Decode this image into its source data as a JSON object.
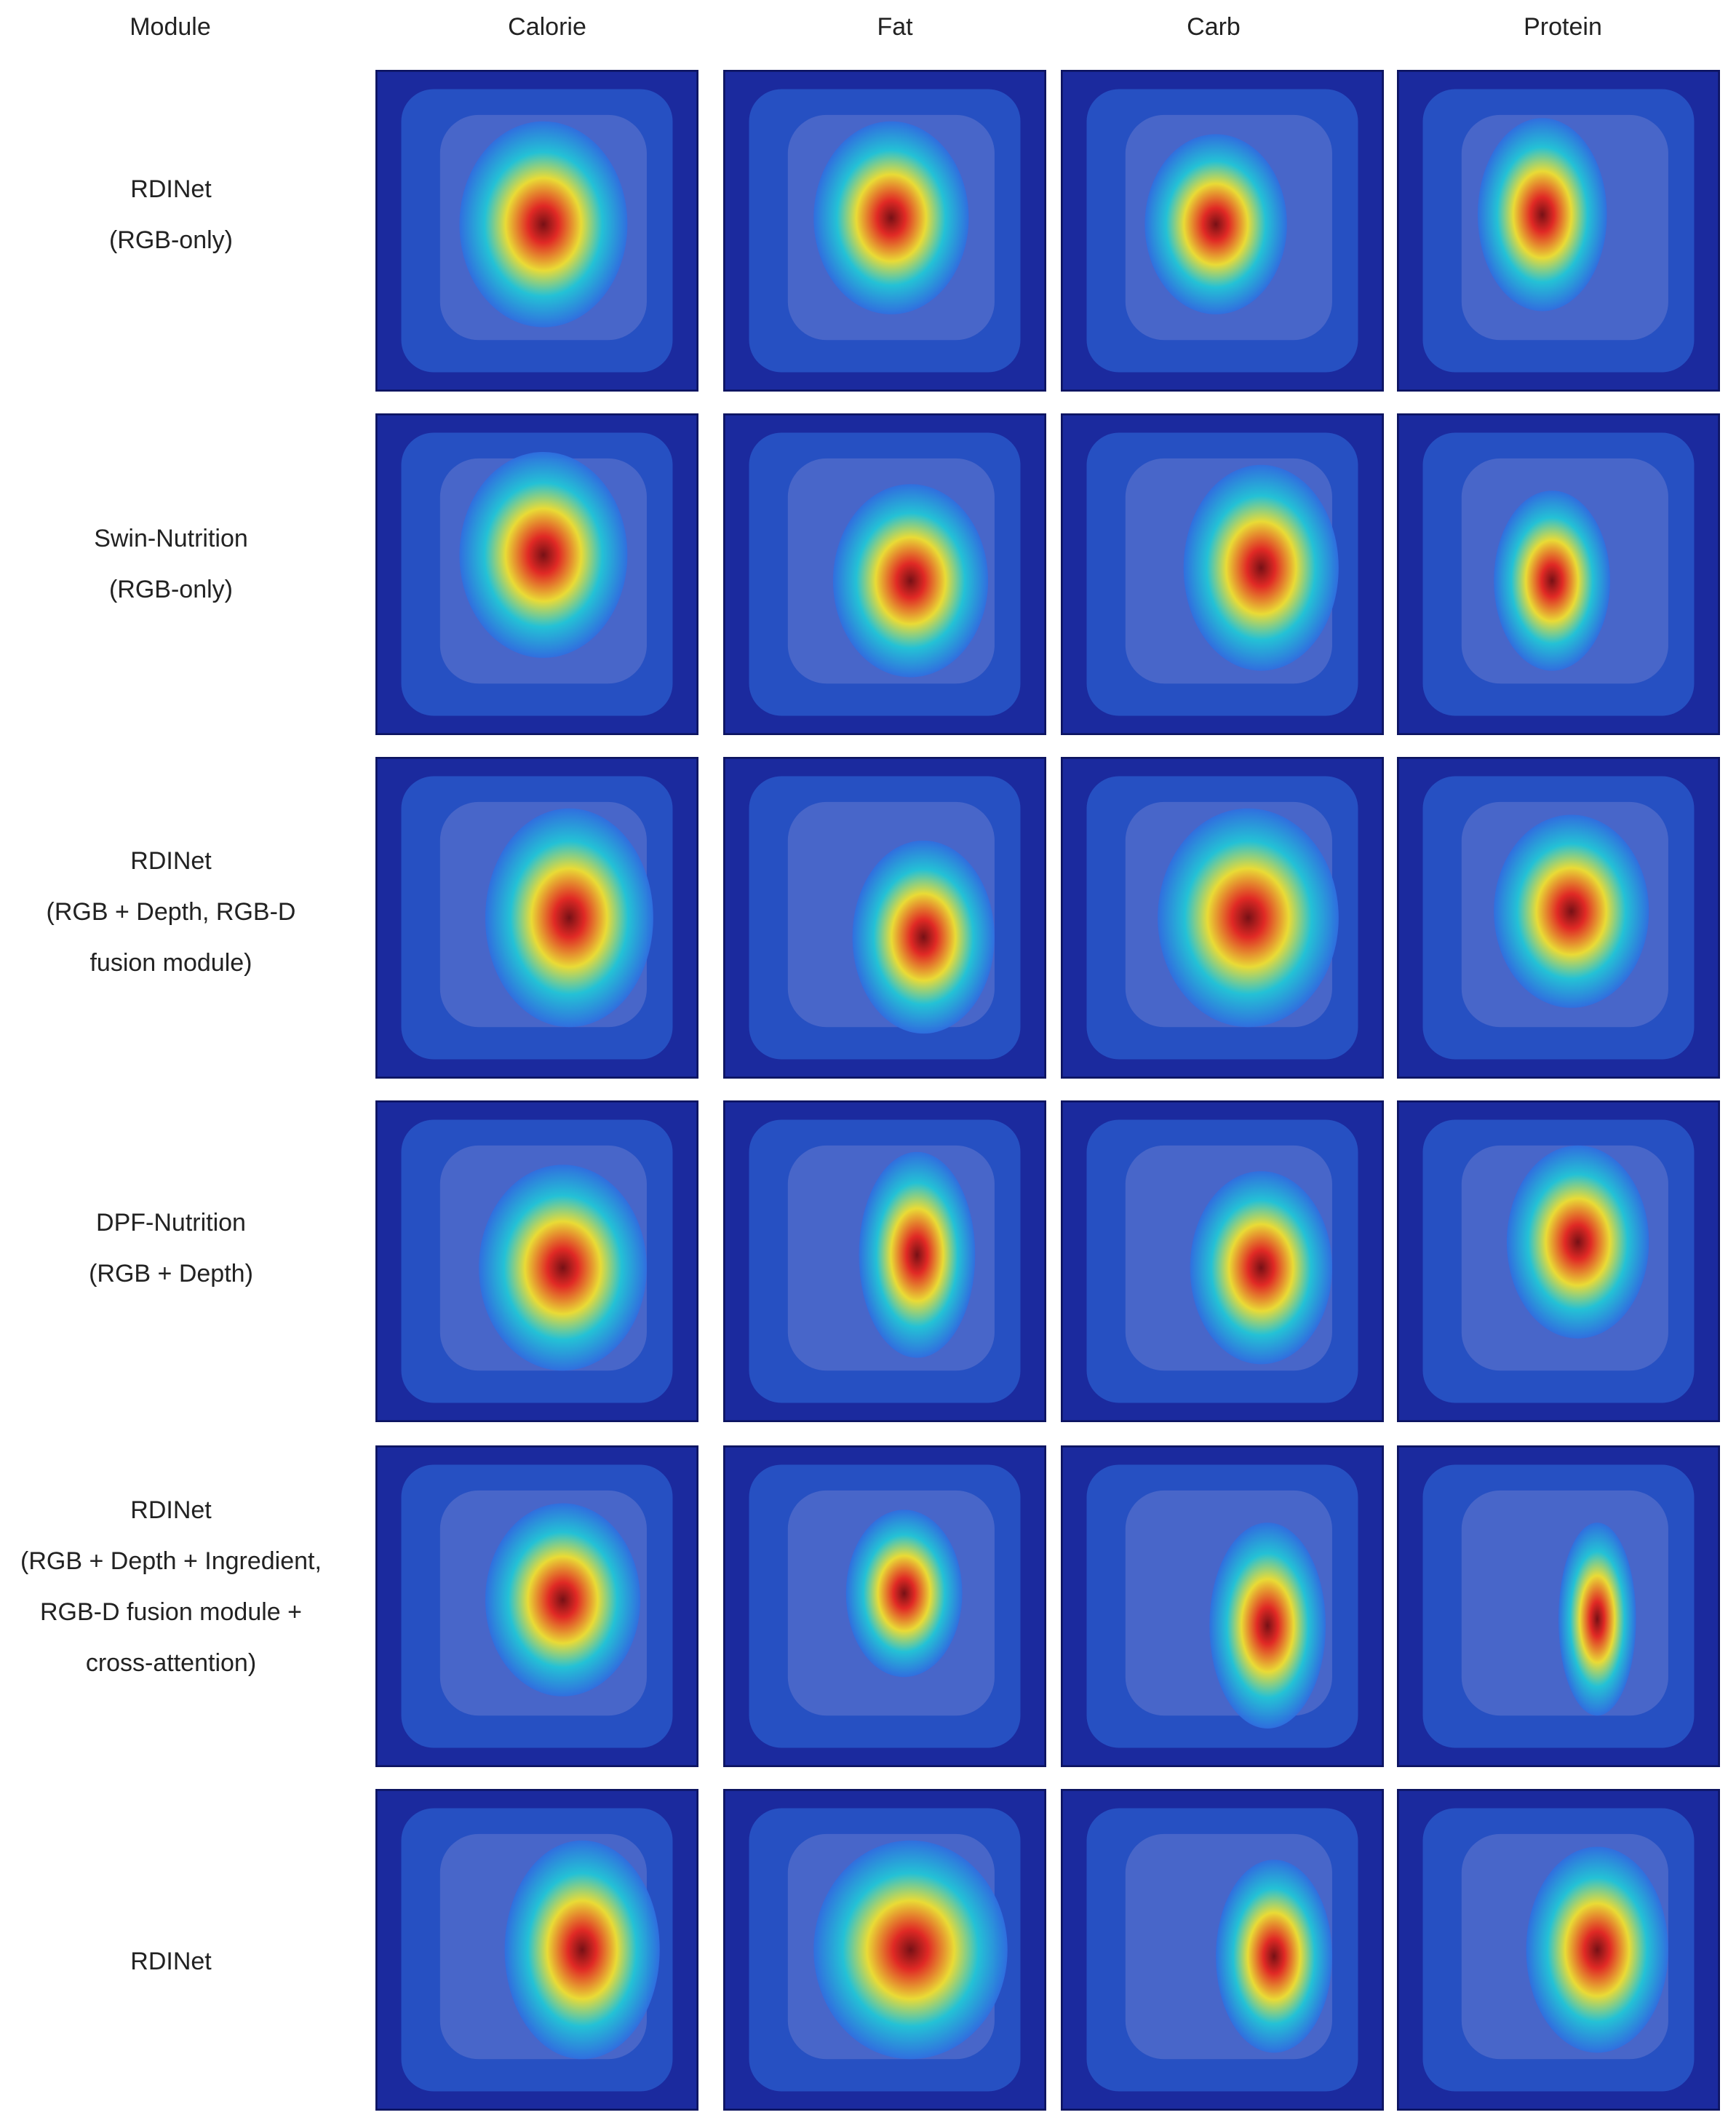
{
  "header": {
    "module": "Module",
    "columns": [
      "Calorie",
      "Fat",
      "Carb",
      "Protein"
    ]
  },
  "rows": [
    {
      "lines": [
        "RDINet",
        "(RGB-only)"
      ]
    },
    {
      "lines": [
        "Swin-Nutrition",
        "(RGB-only)"
      ]
    },
    {
      "lines": [
        "RDINet",
        "(RGB + Depth, RGB-D",
        "fusion module)"
      ]
    },
    {
      "lines": [
        "DPF-Nutrition",
        "(RGB + Depth)"
      ]
    },
    {
      "lines": [
        "RDINet",
        "(RGB + Depth + Ingredient,",
        "RGB-D fusion module +",
        "cross-attention)"
      ]
    },
    {
      "lines": [
        "RDINet"
      ]
    }
  ],
  "colors": {
    "cold": "#1b2a9e",
    "cool": "#2f6fe0",
    "cyan": "#22c6d6",
    "warm": "#f2e12e",
    "hot": "#e8261c",
    "core": "#7a0c0c"
  }
}
